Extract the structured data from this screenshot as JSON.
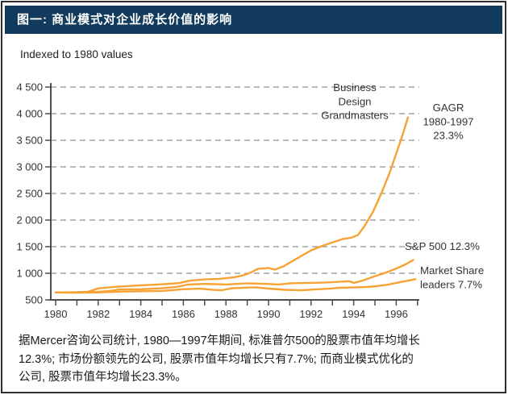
{
  "header": {
    "title": "图一: 商业模式对企业成长价值的影响"
  },
  "chart_data": {
    "type": "line",
    "subtitle": "Indexed to 1980 values",
    "x_axis": {
      "min": 1980,
      "max": 1997,
      "minor_tick_every": 1,
      "label_every": 2,
      "labels": [
        "1980",
        "1982",
        "1984",
        "1986",
        "1988",
        "1990",
        "1992",
        "1994",
        "1996"
      ]
    },
    "y_axis": {
      "min": 500,
      "max": 4500,
      "step": 500,
      "labels": [
        "500",
        "1 000",
        "1 500",
        "2 000",
        "2 500",
        "3 000",
        "3 500",
        "4 000",
        "4 500"
      ]
    },
    "grid": "horizontal-dashed",
    "legend_position": "inline-annotations",
    "colors": {
      "line": "#F7A234",
      "grid": "#909090",
      "axis": "#4d4d4d",
      "text": "#333333",
      "header": "#123a5c"
    },
    "series": [
      {
        "name": "Business Design Grandmasters",
        "annotation": [
          "Business",
          "Design",
          "Grandmasters"
        ],
        "cagr": [
          "GAGR",
          "1980-1997",
          "23.3%"
        ],
        "points": [
          [
            1980,
            640
          ],
          [
            1980.8,
            642
          ],
          [
            1981.5,
            650
          ],
          [
            1982,
            715
          ],
          [
            1982.8,
            745
          ],
          [
            1984,
            775
          ],
          [
            1985,
            792
          ],
          [
            1985.8,
            815
          ],
          [
            1986.3,
            860
          ],
          [
            1987,
            885
          ],
          [
            1987.7,
            895
          ],
          [
            1988.4,
            925
          ],
          [
            1988.8,
            960
          ],
          [
            1989.2,
            1020
          ],
          [
            1989.5,
            1085
          ],
          [
            1990,
            1100
          ],
          [
            1990.3,
            1068
          ],
          [
            1990.7,
            1130
          ],
          [
            1991,
            1200
          ],
          [
            1991.6,
            1340
          ],
          [
            1992,
            1430
          ],
          [
            1992.5,
            1510
          ],
          [
            1993,
            1580
          ],
          [
            1993.5,
            1645
          ],
          [
            1993.9,
            1670
          ],
          [
            1994.2,
            1720
          ],
          [
            1994.5,
            1880
          ],
          [
            1994.9,
            2150
          ],
          [
            1995.3,
            2500
          ],
          [
            1995.7,
            2900
          ],
          [
            1996,
            3250
          ],
          [
            1996.3,
            3600
          ],
          [
            1996.55,
            3930
          ]
        ]
      },
      {
        "name": "S&P 500",
        "annotation": [
          "S&P 500 12.3%"
        ],
        "points": [
          [
            1980,
            640
          ],
          [
            1981,
            638
          ],
          [
            1981.7,
            645
          ],
          [
            1982.5,
            665
          ],
          [
            1983,
            695
          ],
          [
            1984,
            700
          ],
          [
            1985,
            718
          ],
          [
            1985.7,
            745
          ],
          [
            1986.2,
            788
          ],
          [
            1987,
            800
          ],
          [
            1987.5,
            795
          ],
          [
            1988,
            790
          ],
          [
            1989,
            812
          ],
          [
            1990,
            798
          ],
          [
            1990.5,
            790
          ],
          [
            1991,
            812
          ],
          [
            1992,
            820
          ],
          [
            1992.7,
            828
          ],
          [
            1993.4,
            842
          ],
          [
            1993.8,
            850
          ],
          [
            1994,
            818
          ],
          [
            1994.4,
            860
          ],
          [
            1995,
            945
          ],
          [
            1995.5,
            1010
          ],
          [
            1996,
            1090
          ],
          [
            1996.4,
            1160
          ],
          [
            1996.8,
            1248
          ]
        ]
      },
      {
        "name": "Market Share leaders",
        "annotation": [
          "Market Share",
          "leaders 7.7%"
        ],
        "points": [
          [
            1980,
            640
          ],
          [
            1981,
            636
          ],
          [
            1982,
            640
          ],
          [
            1983,
            655
          ],
          [
            1984,
            662
          ],
          [
            1985,
            668
          ],
          [
            1986,
            700
          ],
          [
            1986.8,
            710
          ],
          [
            1987.4,
            688
          ],
          [
            1987.8,
            682
          ],
          [
            1988.3,
            718
          ],
          [
            1989,
            730
          ],
          [
            1989.4,
            737
          ],
          [
            1990,
            712
          ],
          [
            1990.8,
            690
          ],
          [
            1991.5,
            680
          ],
          [
            1992,
            692
          ],
          [
            1992.6,
            706
          ],
          [
            1993,
            715
          ],
          [
            1993.3,
            727
          ],
          [
            1994,
            733
          ],
          [
            1994.6,
            742
          ],
          [
            1995,
            755
          ],
          [
            1995.6,
            785
          ],
          [
            1996,
            820
          ],
          [
            1996.5,
            858
          ],
          [
            1996.9,
            890
          ]
        ]
      }
    ]
  },
  "footnote": {
    "lines": [
      "据Mercer咨询公司统计, 1980—1997年期间, 标准普尔500的股票市值年均增长",
      "12.3%; 市场份额领先的公司, 股票市值年均增长只有7.7%; 而商业模式优化的",
      "公司, 股票市值年均增长23.3%。"
    ]
  }
}
